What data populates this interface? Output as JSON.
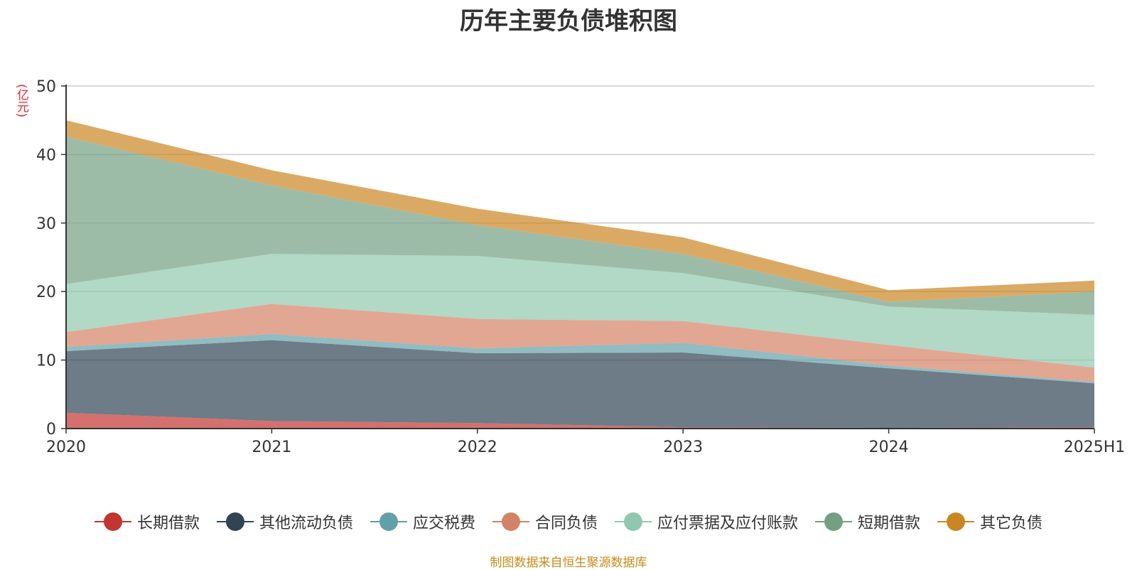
{
  "chart_data": {
    "type": "area",
    "stacked": true,
    "title": "历年主要负债堆积图",
    "ylabel": "(亿元)",
    "categories": [
      "2020",
      "2021",
      "2022",
      "2023",
      "2024",
      "2025H1"
    ],
    "ylim": [
      0,
      50
    ],
    "yticks": [
      0,
      10,
      20,
      30,
      40,
      50
    ],
    "grid": true,
    "legend_position": "bottom",
    "series": [
      {
        "name": "长期借款",
        "color": "#c23531",
        "values": [
          2.3,
          1.1,
          0.8,
          0.2,
          0.1,
          0.2
        ]
      },
      {
        "name": "其他流动负债",
        "color": "#2f4554",
        "values": [
          9.0,
          11.8,
          10.2,
          10.9,
          8.7,
          6.4
        ]
      },
      {
        "name": "应交税费",
        "color": "#61a0a8",
        "values": [
          0.6,
          0.9,
          0.7,
          1.4,
          0.4,
          0.2
        ]
      },
      {
        "name": "合同负债",
        "color": "#d48265",
        "values": [
          2.2,
          4.4,
          4.3,
          3.2,
          3.0,
          2.1
        ]
      },
      {
        "name": "应付票据及应付账款",
        "color": "#91c7ae",
        "values": [
          7.0,
          7.3,
          9.2,
          7.0,
          5.6,
          7.7
        ]
      },
      {
        "name": "短期借款",
        "color": "#749f83",
        "values": [
          21.5,
          10.0,
          4.5,
          2.8,
          0.7,
          3.4
        ]
      },
      {
        "name": "其它负债",
        "color": "#ca8622",
        "values": [
          2.4,
          2.2,
          2.4,
          2.4,
          1.7,
          1.6
        ]
      }
    ]
  },
  "source_note": "制图数据来自恒生聚源数据库"
}
